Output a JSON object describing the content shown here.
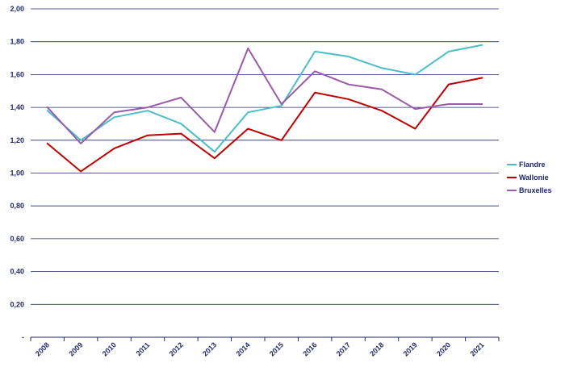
{
  "chart_data": {
    "type": "line",
    "title": "",
    "xlabel": "",
    "ylabel": "",
    "categories": [
      "2008",
      "2009",
      "2010",
      "2011",
      "2012",
      "2013",
      "2014",
      "2015",
      "2016",
      "2017",
      "2018",
      "2019",
      "2020",
      "2021"
    ],
    "ylim": [
      0,
      2
    ],
    "yticks": [
      0,
      0.2,
      0.4,
      0.6,
      0.8,
      1.0,
      1.2,
      1.4,
      1.6,
      1.8,
      2.0
    ],
    "ytick_labels": [
      "-",
      "0,20",
      "0,40",
      "0,60",
      "0,80",
      "1,00",
      "1,20",
      "1,40",
      "1,60",
      "1,80",
      "2,00"
    ],
    "grid": "horizontal",
    "legend_position": "right",
    "series": [
      {
        "name": "Flandre",
        "color": "#4bbec8",
        "values": [
          1.38,
          1.2,
          1.34,
          1.38,
          1.3,
          1.13,
          1.37,
          1.41,
          1.74,
          1.71,
          1.64,
          1.6,
          1.74,
          1.78
        ]
      },
      {
        "name": "Wallonie",
        "color": "#c00000",
        "values": [
          1.18,
          1.01,
          1.15,
          1.23,
          1.24,
          1.09,
          1.27,
          1.2,
          1.49,
          1.45,
          1.38,
          1.27,
          1.54,
          1.58
        ]
      },
      {
        "name": "Bruxelles",
        "color": "#9a5ba8",
        "values": [
          1.4,
          1.18,
          1.37,
          1.4,
          1.46,
          1.25,
          1.76,
          1.42,
          1.62,
          1.54,
          1.51,
          1.39,
          1.42,
          1.42
        ]
      }
    ]
  }
}
